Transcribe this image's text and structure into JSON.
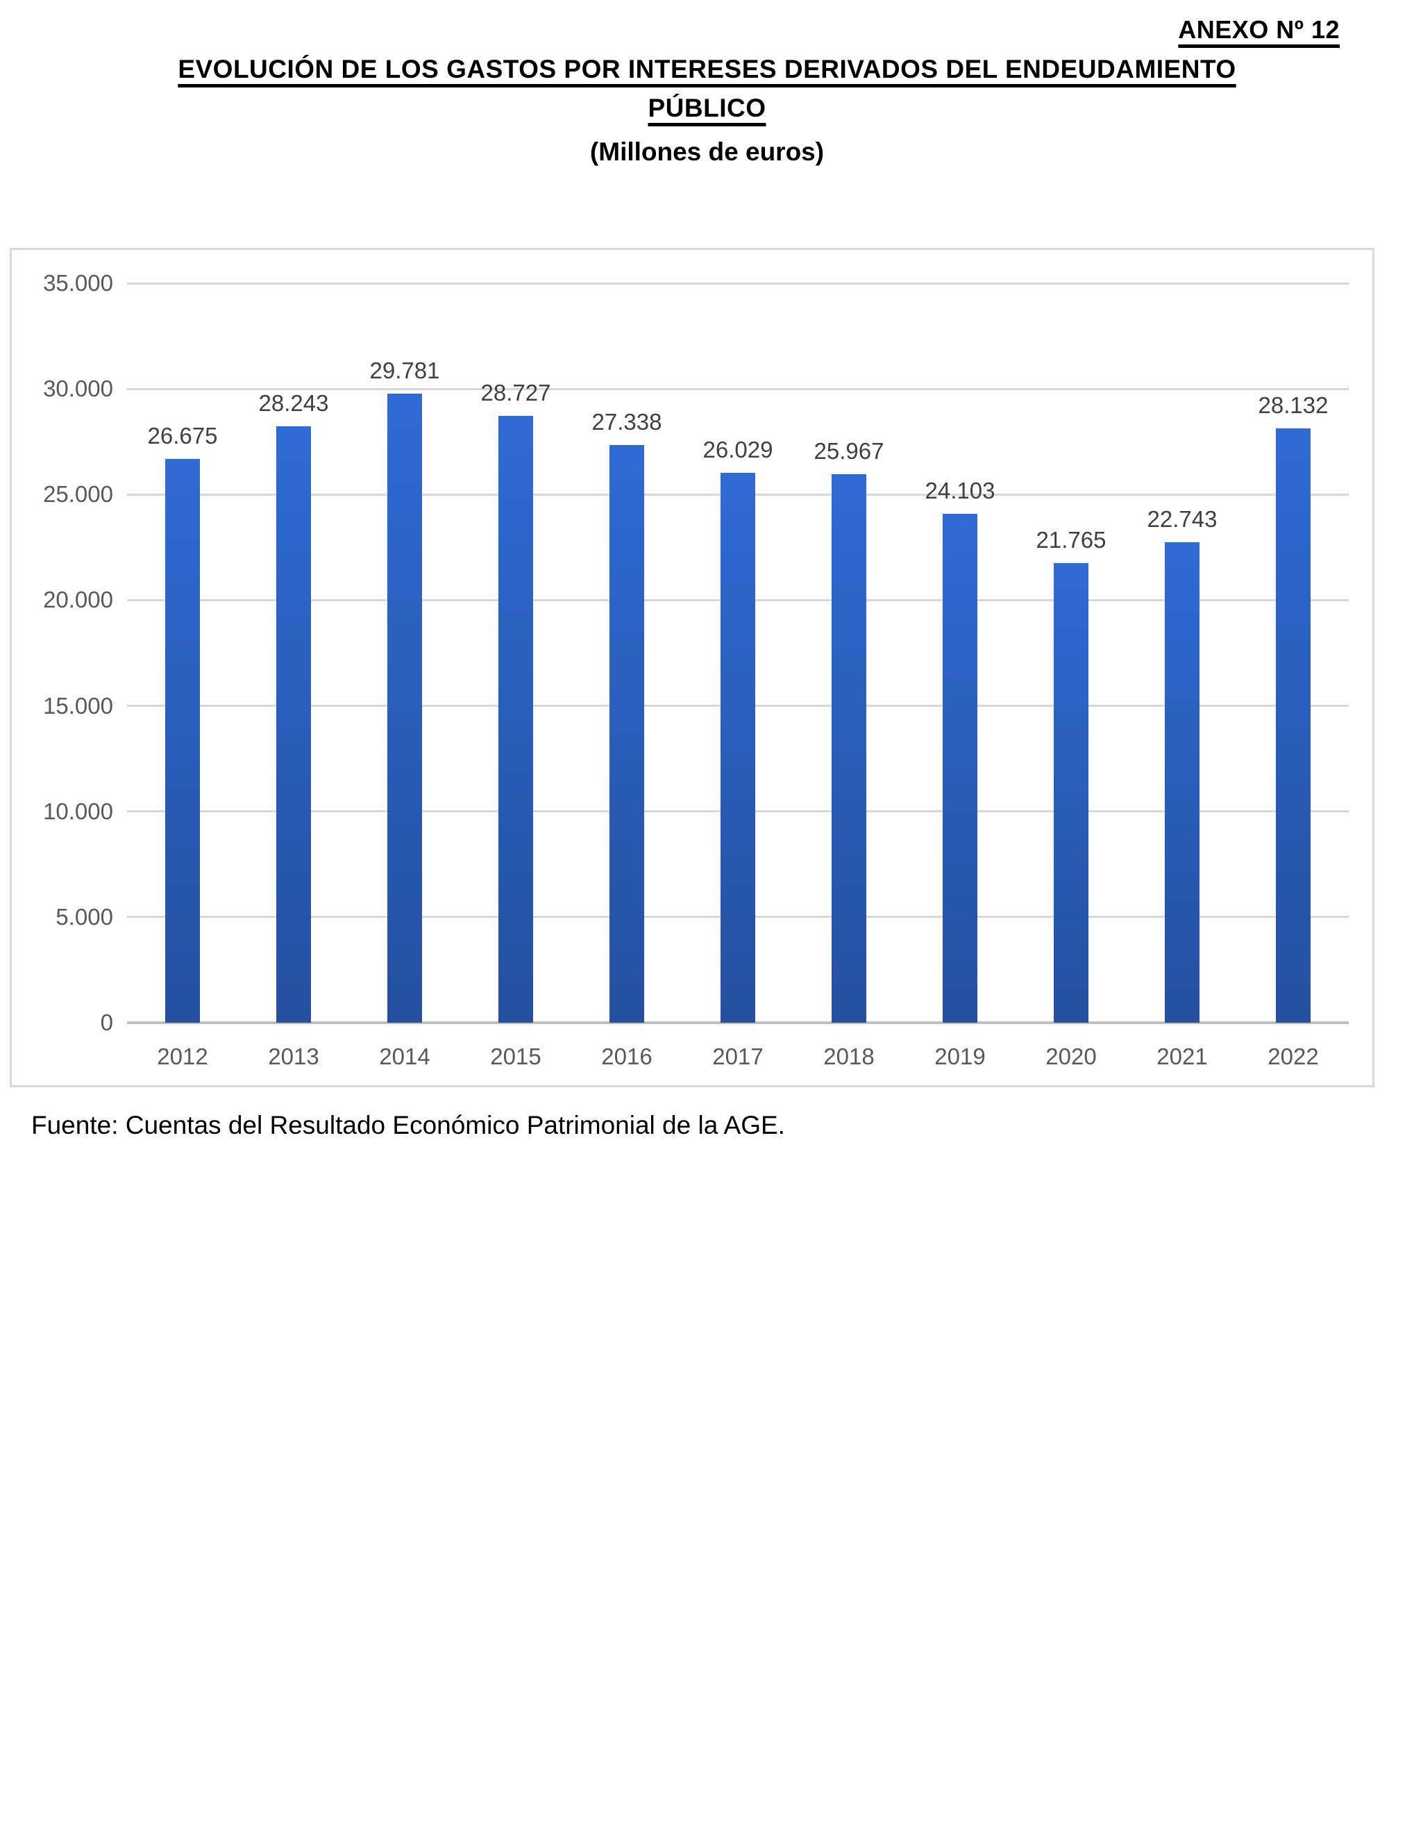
{
  "page": {
    "annex_label": "ANEXO Nº 12",
    "title_line1": "EVOLUCIÓN DE LOS GASTOS POR INTERESES DERIVADOS DEL ENDEUDAMIENTO",
    "title_line2": "PÚBLICO",
    "subtitle": "(Millones de euros)",
    "source_note": "Fuente: Cuentas del Resultado Económico Patrimonial de la AGE."
  },
  "chart_data": {
    "type": "bar",
    "title": "",
    "xlabel": "",
    "ylabel": "",
    "categories": [
      "2012",
      "2013",
      "2014",
      "2015",
      "2016",
      "2017",
      "2018",
      "2019",
      "2020",
      "2021",
      "2022"
    ],
    "values": [
      26675,
      28243,
      29781,
      28727,
      27338,
      26029,
      25967,
      24103,
      21765,
      22743,
      28132
    ],
    "values_formatted": [
      "26.675",
      "28.243",
      "29.781",
      "28.727",
      "27.338",
      "26.029",
      "25.967",
      "24.103",
      "21.765",
      "22.743",
      "28.132"
    ],
    "ylim": [
      0,
      35000
    ],
    "ytick_interval": 5000,
    "ytick_labels_top_to_bottom": [
      "35.000",
      "30.000",
      "25.000",
      "20.000",
      "15.000",
      "10.000",
      "5.000",
      "0"
    ],
    "grid": true,
    "legend_position": "none",
    "colors": {
      "bar_gradient_top": "#2e6bd4",
      "bar_gradient_bottom": "#24509f",
      "gridline": "#d9d9d9",
      "axis_line": "#bfbfbf",
      "axis_tick_label": "#595959",
      "data_label": "#404040",
      "chart_border": "#d9d9d9"
    }
  }
}
